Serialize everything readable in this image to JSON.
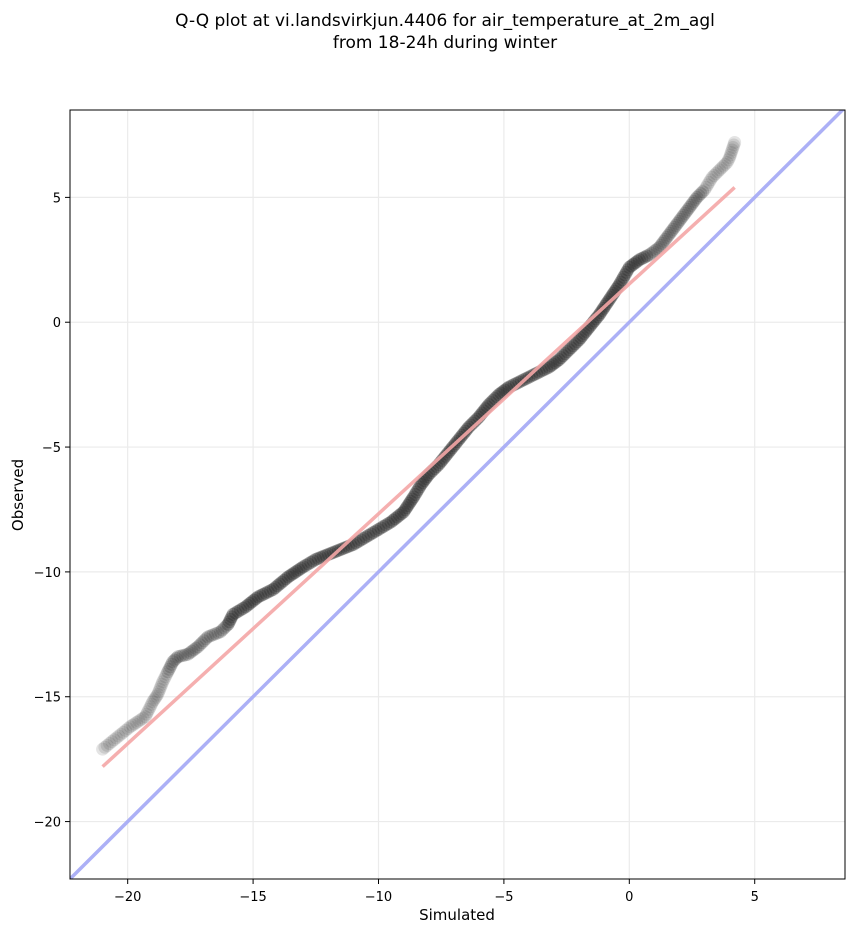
{
  "chart_data": {
    "type": "scatter",
    "title": "Q-Q plot at vi.landsvirkjun.4406 for air_temperature_at_2m_agl",
    "subtitle": "from 18-24h during winter",
    "xlabel": "Simulated",
    "ylabel": "Observed",
    "xlim": [
      -22.3,
      8.6
    ],
    "ylim": [
      -22.3,
      8.5
    ],
    "xticks": [
      -20,
      -15,
      -10,
      -5,
      0,
      5
    ],
    "yticks": [
      -20,
      -15,
      -10,
      -5,
      0,
      5
    ],
    "xtick_labels": [
      "−20",
      "−15",
      "−10",
      "−5",
      "0",
      "5"
    ],
    "ytick_labels": [
      "−20",
      "−15",
      "−10",
      "−5",
      "0",
      "5"
    ],
    "grid": true,
    "colors": {
      "points": "#222222",
      "fit_line": "#f4a6a6",
      "identity_line": "#a8acf5",
      "grid": "#ebebeb"
    },
    "quantile_curve": [
      [
        -21.0,
        -17.1
      ],
      [
        -19.9,
        -16.2
      ],
      [
        -19.3,
        -15.8
      ],
      [
        -19.0,
        -15.2
      ],
      [
        -18.8,
        -14.9
      ],
      [
        -18.6,
        -14.4
      ],
      [
        -18.4,
        -14.0
      ],
      [
        -18.2,
        -13.6
      ],
      [
        -18.0,
        -13.4
      ],
      [
        -17.6,
        -13.3
      ],
      [
        -17.2,
        -13.0
      ],
      [
        -16.8,
        -12.6
      ],
      [
        -16.3,
        -12.4
      ],
      [
        -16.0,
        -12.1
      ],
      [
        -15.8,
        -11.7
      ],
      [
        -15.3,
        -11.4
      ],
      [
        -14.8,
        -11.0
      ],
      [
        -14.2,
        -10.7
      ],
      [
        -13.6,
        -10.2
      ],
      [
        -13.0,
        -9.8
      ],
      [
        -12.5,
        -9.5
      ],
      [
        -12.0,
        -9.3
      ],
      [
        -11.5,
        -9.1
      ],
      [
        -11.0,
        -8.9
      ],
      [
        -10.5,
        -8.6
      ],
      [
        -10.0,
        -8.3
      ],
      [
        -9.5,
        -8.0
      ],
      [
        -9.0,
        -7.6
      ],
      [
        -8.6,
        -7.0
      ],
      [
        -8.3,
        -6.5
      ],
      [
        -8.0,
        -6.1
      ],
      [
        -7.6,
        -5.7
      ],
      [
        -7.2,
        -5.2
      ],
      [
        -6.8,
        -4.7
      ],
      [
        -6.4,
        -4.2
      ],
      [
        -6.0,
        -3.8
      ],
      [
        -5.6,
        -3.3
      ],
      [
        -5.2,
        -2.9
      ],
      [
        -4.8,
        -2.6
      ],
      [
        -4.4,
        -2.4
      ],
      [
        -4.0,
        -2.2
      ],
      [
        -3.6,
        -2.0
      ],
      [
        -3.2,
        -1.8
      ],
      [
        -2.8,
        -1.5
      ],
      [
        -2.4,
        -1.1
      ],
      [
        -2.0,
        -0.7
      ],
      [
        -1.6,
        -0.2
      ],
      [
        -1.2,
        0.3
      ],
      [
        -0.8,
        0.9
      ],
      [
        -0.4,
        1.5
      ],
      [
        0.0,
        2.2
      ],
      [
        0.4,
        2.5
      ],
      [
        0.8,
        2.7
      ],
      [
        1.2,
        3.0
      ],
      [
        1.5,
        3.4
      ],
      [
        1.8,
        3.8
      ],
      [
        2.1,
        4.2
      ],
      [
        2.4,
        4.6
      ],
      [
        2.7,
        5.0
      ],
      [
        3.0,
        5.3
      ],
      [
        3.3,
        5.8
      ],
      [
        3.6,
        6.1
      ],
      [
        3.9,
        6.4
      ],
      [
        4.0,
        6.6
      ],
      [
        4.2,
        7.2
      ]
    ],
    "fit_line": {
      "x": [
        -21.0,
        4.2
      ],
      "y": [
        -17.8,
        5.4
      ]
    },
    "identity_line": {
      "x": [
        -22.3,
        8.6
      ],
      "y": [
        -22.3,
        8.6
      ]
    }
  }
}
